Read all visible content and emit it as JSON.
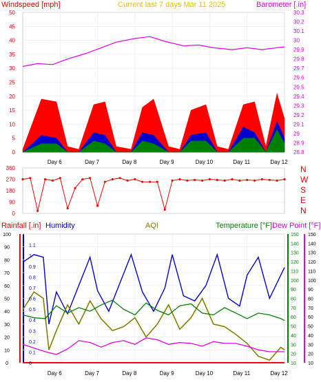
{
  "header": {
    "left_label": "Windspeed [mph]",
    "center_label": "Current last 7 days Mar 11 2025",
    "right_label": "Barometer [.in]"
  },
  "colors": {
    "background": "#ffffff",
    "grid": "#e8e8e8",
    "wind_gust": "#ff0000",
    "wind_avg": "#0000cc",
    "wind_low": "#008000",
    "barometer": "#e000e0",
    "direction": "#ff0000",
    "rain": "#ff0000",
    "humidity": "#0000cc",
    "aqi": "#808000",
    "temperature": "#008000",
    "dewpoint": "#e000e0"
  },
  "direction_labels": [
    "N",
    "W",
    "S",
    "E",
    "N"
  ],
  "lower_header": {
    "rain_label": "Rainfall [.in]",
    "humidity_label": "Humidity",
    "aqi_label": "AQI",
    "temp_label": "Temperature [°F]",
    "dew_label": "Dew Point [°F]"
  },
  "chart_data": [
    {
      "type": "line",
      "name": "wind and barometer",
      "categories": [
        "Day 6",
        "Day 7",
        "Day 8",
        "Day 9",
        "Day 10",
        "Day 11",
        "Day 12"
      ],
      "wind_ylim": [
        0,
        50
      ],
      "wind_ticks": [
        0,
        5,
        10,
        15,
        20,
        25,
        30,
        35,
        40,
        45,
        50
      ],
      "baro_ylim": [
        28.8,
        30.3
      ],
      "baro_ticks": [
        "28.8",
        "28.9",
        "29",
        "29.1",
        "29.2",
        "29.3",
        "29.4",
        "29.5",
        "29.6",
        "29.7",
        "29.8",
        "29.9",
        "30",
        "30.1",
        "30.2",
        "30.3"
      ],
      "series": [
        {
          "name": "Windspeed gust",
          "x": [
            0,
            0.5,
            0.9,
            1.2,
            1.5,
            1.9,
            2.2,
            2.5,
            2.9,
            3.2,
            3.5,
            3.9,
            4.2,
            4.5,
            4.9,
            5.2,
            5.5,
            5.9,
            6.2,
            6.5,
            6.8,
            7.0
          ],
          "values": [
            1,
            19,
            18,
            2,
            1,
            17,
            18,
            2,
            1,
            16,
            19,
            2,
            1,
            15,
            17,
            2,
            1,
            17,
            18,
            2,
            21,
            12
          ]
        },
        {
          "name": "Windspeed average",
          "x": [
            0,
            0.5,
            0.9,
            1.2,
            1.5,
            1.9,
            2.2,
            2.5,
            2.9,
            3.2,
            3.5,
            3.9,
            4.2,
            4.5,
            4.9,
            5.2,
            5.5,
            5.9,
            6.2,
            6.5,
            6.8,
            7.0
          ],
          "values": [
            0,
            6,
            5,
            0,
            0,
            7,
            6,
            0,
            0,
            7,
            6,
            0,
            0,
            6,
            7,
            0,
            0,
            9,
            7,
            0,
            11,
            5
          ]
        },
        {
          "name": "Windspeed low",
          "x": [
            0,
            0.5,
            0.9,
            1.2,
            1.5,
            1.9,
            2.2,
            2.5,
            2.9,
            3.2,
            3.5,
            3.9,
            4.2,
            4.5,
            4.9,
            5.2,
            5.5,
            5.9,
            6.2,
            6.5,
            6.8,
            7.0
          ],
          "values": [
            0,
            3,
            3,
            0,
            0,
            4,
            3,
            0,
            0,
            4,
            3,
            0,
            0,
            4,
            4,
            0,
            0,
            5,
            5,
            0,
            8,
            3
          ]
        },
        {
          "name": "Barometer",
          "x": [
            0,
            0.4,
            0.8,
            1.2,
            1.7,
            2.1,
            2.5,
            3.0,
            3.4,
            3.8,
            4.3,
            4.7,
            5.1,
            5.6,
            6.0,
            6.4,
            6.8,
            7.0
          ],
          "values": [
            29.72,
            29.75,
            29.74,
            29.8,
            29.86,
            29.92,
            29.98,
            30.02,
            30.04,
            29.99,
            29.94,
            29.95,
            29.92,
            29.9,
            29.92,
            29.9,
            29.92,
            29.93
          ]
        }
      ]
    },
    {
      "type": "scatter",
      "name": "wind direction",
      "ylim": [
        0,
        360
      ],
      "ticks": [
        0,
        90,
        180,
        270,
        360
      ],
      "categories": [
        "Day 6",
        "Day 7",
        "Day 8",
        "Day 9",
        "Day 10",
        "Day 11",
        "Day 12"
      ],
      "x": [
        0,
        0.2,
        0.4,
        0.6,
        0.8,
        1.0,
        1.2,
        1.4,
        1.6,
        1.8,
        2.0,
        2.2,
        2.4,
        2.6,
        2.8,
        3.0,
        3.2,
        3.4,
        3.6,
        3.8,
        4.0,
        4.2,
        4.4,
        4.6,
        4.8,
        5.0,
        5.2,
        5.4,
        5.6,
        5.8,
        6.0,
        6.2,
        6.4,
        6.6,
        6.8,
        7.0
      ],
      "values": [
        270,
        280,
        20,
        270,
        260,
        280,
        40,
        200,
        270,
        280,
        60,
        250,
        270,
        280,
        260,
        270,
        250,
        250,
        250,
        30,
        260,
        270,
        260,
        265,
        260,
        270,
        265,
        260,
        270,
        260,
        265,
        260,
        270,
        265,
        260,
        270
      ]
    },
    {
      "type": "line",
      "name": "rainfall, humidity, aqi, temperature and dew point",
      "categories": [
        "Day 6",
        "Day 7",
        "Day 8",
        "Day 9",
        "Day 10",
        "Day 11",
        "Day 12"
      ],
      "rain_ylim": [
        0,
        1.2
      ],
      "rain_ticks": [
        "0",
        "0.1",
        "0.2",
        "0.3",
        "0.4",
        "0.5",
        "0.6",
        "0.7",
        "0.8",
        "0.9",
        "1",
        "1.1"
      ],
      "pct_ylim": [
        0,
        100
      ],
      "pct_ticks": [
        0,
        10,
        20,
        30,
        40,
        50,
        60,
        70,
        80,
        90,
        100
      ],
      "temp_ylim": [
        10,
        150
      ],
      "temp_ticks": [
        10,
        20,
        30,
        40,
        50,
        60,
        70,
        80,
        90,
        100,
        110,
        120,
        130,
        140,
        150
      ],
      "series": [
        {
          "name": "Rainfall",
          "x": [
            0,
            7.0
          ],
          "values": [
            0,
            0
          ]
        },
        {
          "name": "Humidity",
          "x": [
            0.0,
            0.3,
            0.55,
            0.7,
            0.9,
            1.2,
            1.5,
            1.8,
            2.0,
            2.3,
            2.6,
            2.9,
            3.2,
            3.5,
            3.8,
            4.0,
            4.3,
            4.6,
            4.9,
            5.2,
            5.5,
            5.8,
            6.0,
            6.3,
            6.6,
            6.9,
            7.0
          ],
          "values": [
            78,
            84,
            82,
            30,
            55,
            38,
            60,
            82,
            56,
            40,
            62,
            84,
            55,
            40,
            58,
            84,
            52,
            48,
            60,
            84,
            50,
            44,
            68,
            82,
            50,
            68,
            74
          ]
        },
        {
          "name": "AQI",
          "x": [
            0.0,
            0.3,
            0.55,
            0.7,
            0.9,
            1.2,
            1.5,
            1.8,
            2.1,
            2.4,
            2.7,
            3.0,
            3.3,
            3.6,
            3.9,
            4.2,
            4.5,
            4.8,
            5.1,
            5.4,
            5.7,
            6.0,
            6.3,
            6.6,
            6.9,
            7.0
          ],
          "values": [
            41,
            55,
            50,
            10,
            25,
            45,
            30,
            48,
            34,
            25,
            28,
            35,
            20,
            30,
            45,
            26,
            35,
            50,
            30,
            28,
            22,
            15,
            5,
            2,
            12,
            10
          ]
        },
        {
          "name": "Temperature",
          "x": [
            0.0,
            0.3,
            0.6,
            0.9,
            1.2,
            1.5,
            1.8,
            2.1,
            2.4,
            2.7,
            3.0,
            3.3,
            3.6,
            3.9,
            4.2,
            4.5,
            4.8,
            5.1,
            5.4,
            5.7,
            6.0,
            6.3,
            6.6,
            6.9,
            7.0
          ],
          "values": [
            62,
            59,
            58,
            72,
            64,
            70,
            66,
            73,
            78,
            68,
            62,
            75,
            67,
            62,
            72,
            74,
            64,
            62,
            70,
            64,
            58,
            64,
            62,
            58,
            56
          ]
        },
        {
          "name": "Dew Point",
          "x": [
            0.0,
            0.3,
            0.6,
            0.9,
            1.2,
            1.5,
            1.8,
            2.1,
            2.4,
            2.7,
            3.0,
            3.3,
            3.6,
            3.9,
            4.2,
            4.5,
            4.8,
            5.1,
            5.4,
            5.7,
            6.0,
            6.3,
            6.6,
            6.9,
            7.0
          ],
          "values": [
            30,
            26,
            22,
            19,
            25,
            34,
            32,
            27,
            32,
            34,
            30,
            37,
            35,
            30,
            32,
            31,
            28,
            33,
            31,
            31,
            28,
            24,
            22,
            22,
            22
          ]
        }
      ]
    }
  ]
}
